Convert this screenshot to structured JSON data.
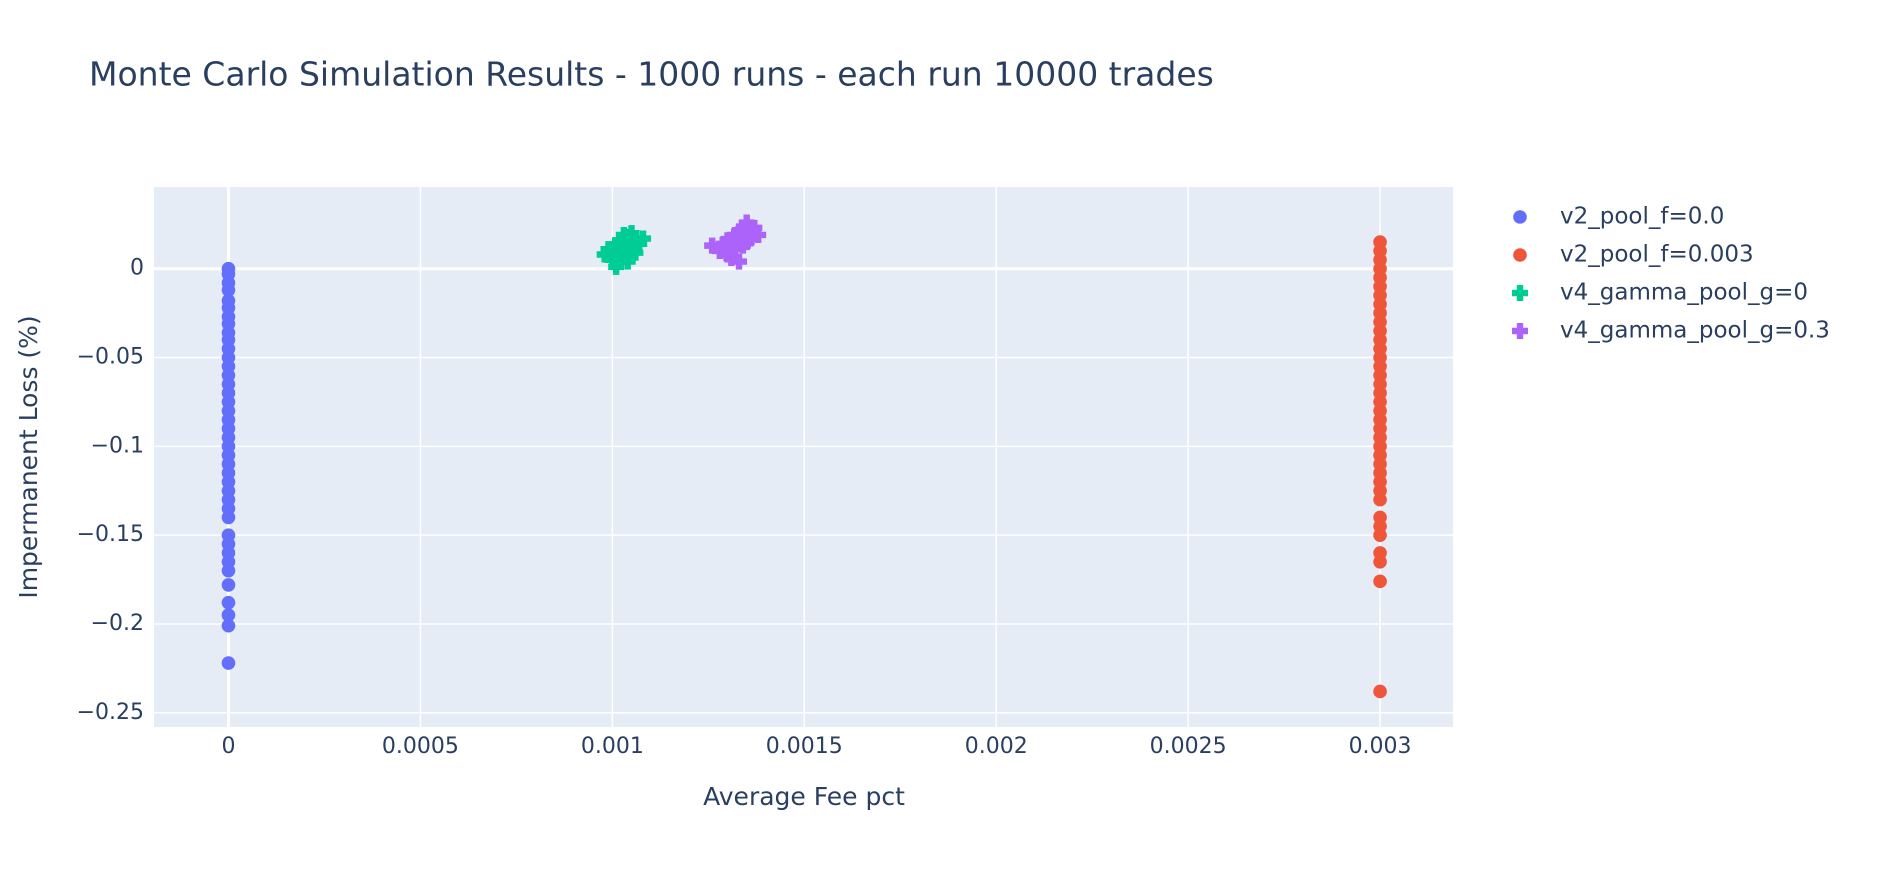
{
  "chart_data": {
    "type": "scatter",
    "title": "Monte Carlo Simulation Results - 1000 runs - each run 10000 trades",
    "x_label": "Average Fee pct",
    "y_label": "Impermanent Loss (%)",
    "xlim": [
      -0.000194,
      0.00319
    ],
    "ylim": [
      -0.258,
      0.046
    ],
    "xticks": [
      0,
      0.0005,
      0.001,
      0.0015,
      0.002,
      0.0025,
      0.003
    ],
    "yticks": [
      {
        "value": -0.25,
        "label": "−0.25"
      },
      {
        "value": -0.2,
        "label": "−0.2"
      },
      {
        "value": -0.15,
        "label": "−0.15"
      },
      {
        "value": -0.1,
        "label": "−0.1"
      },
      {
        "value": -0.05,
        "label": "−0.05"
      },
      0
    ],
    "grid": true,
    "series": [
      {
        "name": "v2_pool_f=0.0",
        "color": "#636efa",
        "symbol": "circle",
        "x": [
          0,
          0,
          0,
          0,
          0,
          0,
          0,
          0,
          0,
          0,
          0,
          0,
          0,
          0,
          0,
          0,
          0,
          0,
          0,
          0,
          0,
          0,
          0,
          0,
          0,
          0,
          0,
          0,
          0,
          0,
          0,
          0,
          0,
          0,
          0,
          0,
          0,
          0,
          0,
          0
        ],
        "values": [
          0,
          -0.003,
          -0.008,
          -0.012,
          -0.018,
          -0.022,
          -0.027,
          -0.031,
          -0.036,
          -0.04,
          -0.045,
          -0.05,
          -0.055,
          -0.06,
          -0.065,
          -0.07,
          -0.075,
          -0.08,
          -0.085,
          -0.09,
          -0.095,
          -0.1,
          -0.105,
          -0.11,
          -0.115,
          -0.12,
          -0.125,
          -0.13,
          -0.135,
          -0.14,
          -0.15,
          -0.155,
          -0.16,
          -0.165,
          -0.17,
          -0.178,
          -0.188,
          -0.195,
          -0.201,
          -0.222
        ]
      },
      {
        "name": "v2_pool_f=0.003",
        "color": "#ef553b",
        "symbol": "circle",
        "x": [
          0.003,
          0.003,
          0.003,
          0.003,
          0.003,
          0.003,
          0.003,
          0.003,
          0.003,
          0.003,
          0.003,
          0.003,
          0.003,
          0.003,
          0.003,
          0.003,
          0.003,
          0.003,
          0.003,
          0.003,
          0.003,
          0.003,
          0.003,
          0.003,
          0.003,
          0.003,
          0.003,
          0.003,
          0.003,
          0.003,
          0.003,
          0.003,
          0.003,
          0.003,
          0.003,
          0.003,
          0.003
        ],
        "values": [
          0.015,
          0.01,
          0.005,
          0,
          -0.005,
          -0.01,
          -0.015,
          -0.02,
          -0.025,
          -0.03,
          -0.035,
          -0.04,
          -0.045,
          -0.05,
          -0.055,
          -0.06,
          -0.065,
          -0.07,
          -0.075,
          -0.08,
          -0.085,
          -0.09,
          -0.095,
          -0.1,
          -0.105,
          -0.11,
          -0.115,
          -0.12,
          -0.125,
          -0.13,
          -0.14,
          -0.145,
          -0.15,
          -0.16,
          -0.165,
          -0.176,
          -0.238
        ]
      },
      {
        "name": "v4_gamma_pool_g=0",
        "color": "#00cc96",
        "symbol": "cross",
        "x": [
          0.00098,
          0.001,
          0.00101,
          0.00102,
          0.00103,
          0.00104,
          0.00105,
          0.00106,
          0.00108,
          0.00103,
          0.00101,
          0.00105,
          0.001,
          0.00104,
          0.00102,
          0.00106,
          0.00103,
          0.00107,
          0.00099,
          0.00104
        ],
        "values": [
          0.008,
          0.005,
          0.001,
          0.012,
          0.015,
          0.018,
          0.02,
          0.016,
          0.017,
          0.008,
          0.01,
          0.013,
          0.011,
          0.007,
          0.016,
          0.009,
          0.019,
          0.014,
          0.011,
          0.004
        ]
      },
      {
        "name": "v4_gamma_pool_g=0.3",
        "color": "#ab63fa",
        "symbol": "cross",
        "x": [
          0.00126,
          0.00128,
          0.0013,
          0.00131,
          0.00132,
          0.00133,
          0.00134,
          0.00135,
          0.00136,
          0.00138,
          0.00129,
          0.00131,
          0.00133,
          0.00135,
          0.00137,
          0.0013,
          0.00132,
          0.00134,
          0.00136,
          0.00133
        ],
        "values": [
          0.013,
          0.01,
          0.016,
          0.006,
          0.019,
          0.004,
          0.022,
          0.026,
          0.02,
          0.019,
          0.014,
          0.012,
          0.017,
          0.015,
          0.023,
          0.008,
          0.011,
          0.013,
          0.017,
          0.021
        ]
      }
    ]
  }
}
